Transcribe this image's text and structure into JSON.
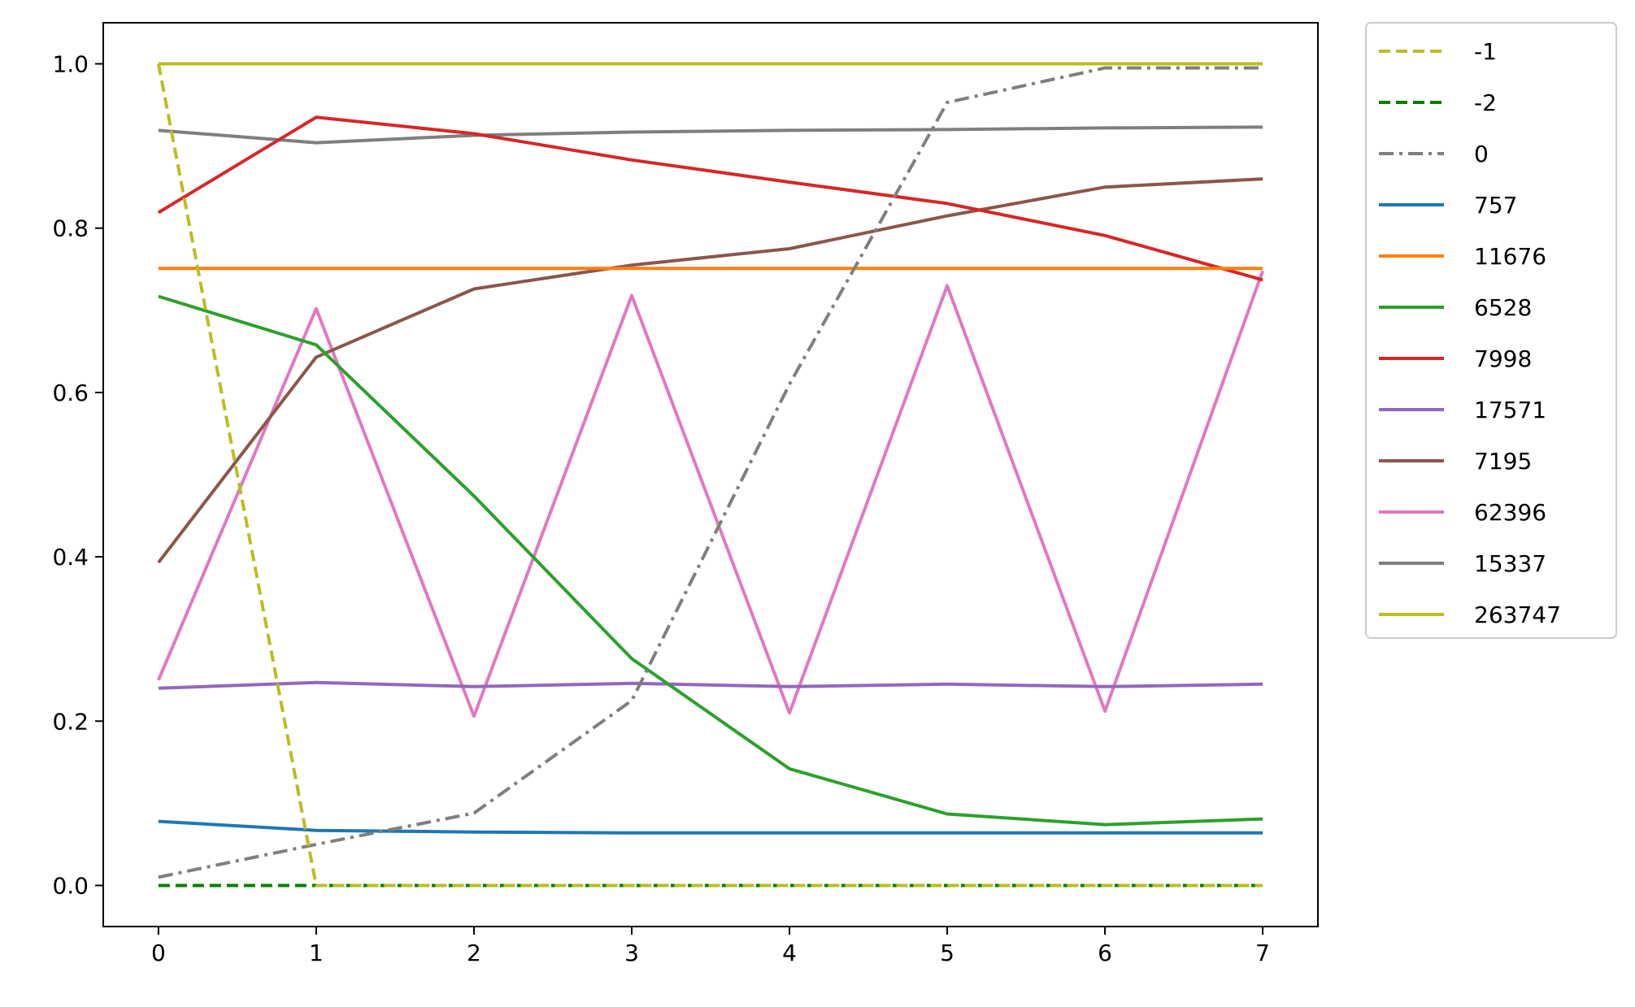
{
  "chart_data": {
    "type": "line",
    "title": "",
    "xlabel": "",
    "ylabel": "",
    "x": [
      0,
      1,
      2,
      3,
      4,
      5,
      6,
      7
    ],
    "xlim": [
      -0.35,
      7.35
    ],
    "ylim": [
      -0.05,
      1.05
    ],
    "xticks": [
      "0",
      "1",
      "2",
      "3",
      "4",
      "5",
      "6",
      "7"
    ],
    "yticks": [
      "0.0",
      "0.2",
      "0.4",
      "0.6",
      "0.8",
      "1.0"
    ],
    "grid": false,
    "legend_position": "outside-right-top",
    "series": [
      {
        "name": "-1",
        "color": "#bcbd22",
        "dash": "dashed",
        "values": [
          1.0,
          0.0,
          0.0,
          0.0,
          0.0,
          0.0,
          0.0,
          0.0
        ]
      },
      {
        "name": "-2",
        "color": "#008000",
        "dash": "dashed",
        "values": [
          0.0,
          0.0,
          0.0,
          0.0,
          0.0,
          0.0,
          0.0,
          0.0
        ]
      },
      {
        "name": "0",
        "color": "#7f7f7f",
        "dash": "dashdot",
        "values": [
          0.01,
          0.05,
          0.088,
          0.225,
          0.61,
          0.953,
          0.995,
          0.995
        ]
      },
      {
        "name": "757",
        "color": "#1f77b4",
        "dash": "solid",
        "values": [
          0.078,
          0.067,
          0.065,
          0.064,
          0.064,
          0.064,
          0.064,
          0.064
        ]
      },
      {
        "name": "11676",
        "color": "#ff7f0e",
        "dash": "solid",
        "values": [
          0.751,
          0.751,
          0.751,
          0.751,
          0.751,
          0.751,
          0.751,
          0.751
        ]
      },
      {
        "name": "6528",
        "color": "#2ca02c",
        "dash": "solid",
        "values": [
          0.717,
          0.658,
          0.474,
          0.276,
          0.142,
          0.087,
          0.074,
          0.081
        ]
      },
      {
        "name": "7998",
        "color": "#d62728",
        "dash": "solid",
        "values": [
          0.819,
          0.935,
          0.915,
          0.883,
          0.856,
          0.83,
          0.791,
          0.737
        ]
      },
      {
        "name": "17571",
        "color": "#9467bd",
        "dash": "solid",
        "values": [
          0.24,
          0.247,
          0.242,
          0.246,
          0.242,
          0.245,
          0.242,
          0.245
        ]
      },
      {
        "name": "7195",
        "color": "#8c564b",
        "dash": "solid",
        "values": [
          0.393,
          0.643,
          0.726,
          0.755,
          0.775,
          0.815,
          0.85,
          0.86
        ]
      },
      {
        "name": "62396",
        "color": "#e377c2",
        "dash": "solid",
        "values": [
          0.25,
          0.702,
          0.206,
          0.718,
          0.21,
          0.73,
          0.212,
          0.748
        ]
      },
      {
        "name": "15337",
        "color": "#7f7f7f",
        "dash": "solid",
        "values": [
          0.919,
          0.904,
          0.913,
          0.917,
          0.919,
          0.92,
          0.922,
          0.923
        ]
      },
      {
        "name": "263747",
        "color": "#bcbd22",
        "dash": "solid",
        "values": [
          1.0,
          1.0,
          1.0,
          1.0,
          1.0,
          1.0,
          1.0,
          1.0
        ]
      }
    ]
  }
}
